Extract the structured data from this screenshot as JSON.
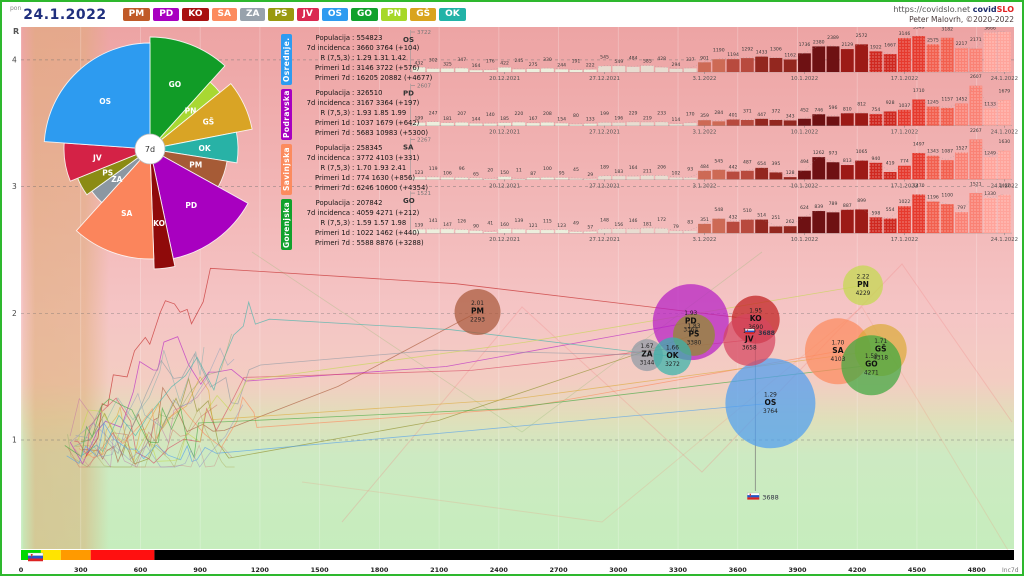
{
  "header": {
    "day": "pon",
    "date": "24.1.2022",
    "url": "https://covidslo.net",
    "brand_covid": "covid",
    "brand_slo": "SLO",
    "credit": "Peter Malovrh, ©2020-2022",
    "regions": [
      {
        "code": "PM",
        "color": "#c05a28"
      },
      {
        "code": "PD",
        "color": "#a800c0"
      },
      {
        "code": "KO",
        "color": "#a81111"
      },
      {
        "code": "SA",
        "color": "#fc8b5e"
      },
      {
        "code": "ZA",
        "color": "#98a2ac"
      },
      {
        "code": "PS",
        "color": "#99990f"
      },
      {
        "code": "JV",
        "color": "#da2950"
      },
      {
        "code": "OS",
        "color": "#2e9bf0"
      },
      {
        "code": "GO",
        "color": "#11a12c"
      },
      {
        "code": "PN",
        "color": "#a6d829"
      },
      {
        "code": "GŠ",
        "color": "#d9a41e"
      },
      {
        "code": "OK",
        "color": "#22b3a7"
      }
    ]
  },
  "axes": {
    "y_label": "R",
    "y_ticks": [
      4,
      3,
      2,
      1
    ],
    "x_min": 0,
    "x_max": 4800,
    "x_step": 300,
    "x_label": "Inc7d"
  },
  "info_boxes": [
    {
      "region": "Osrednje.",
      "color": "#2e9bf0",
      "lines": [
        [
          "Populacija",
          ": 554823"
        ],
        [
          "7d incidenca",
          ": 3660 3764 (+104)"
        ],
        [
          "R (7,5,3)",
          ": 1.29 1.31 1.42"
        ],
        [
          "Primeri 1d",
          ": 3146 3722 (+576)"
        ],
        [
          "Primeri 7d",
          ": 16205 20882 (+4677)"
        ]
      ]
    },
    {
      "region": "Podravska",
      "color": "#a800c0",
      "lines": [
        [
          "Populacija",
          ": 326510"
        ],
        [
          "7d incidenca",
          ": 3167 3364 (+197)"
        ],
        [
          "R (7,5,3)",
          ": 1.93 1.85 1.99"
        ],
        [
          "Primeri 1d",
          ": 1037 1679 (+642)"
        ],
        [
          "Primeri 7d",
          ": 5683 10983 (+5300)"
        ]
      ]
    },
    {
      "region": "Savinjska",
      "color": "#fc8b5e",
      "lines": [
        [
          "Populacija",
          ": 258345"
        ],
        [
          "7d incidenca",
          ": 3772 4103 (+331)"
        ],
        [
          "R (7,5,3)",
          ": 1.70 1.93 2.41"
        ],
        [
          "Primeri 1d",
          ": 774 1630 (+856)"
        ],
        [
          "Primeri 7d",
          ": 6246 10600 (+4354)"
        ]
      ]
    },
    {
      "region": "Gorenjska",
      "color": "#11a12c",
      "lines": [
        [
          "Populacija",
          ": 207842"
        ],
        [
          "7d incidenca",
          ": 4059 4271 (+212)"
        ],
        [
          "R (7,5,3)",
          ": 1.59 1.57 1.98"
        ],
        [
          "Primeri 1d",
          ": 1022 1462 (+440)"
        ],
        [
          "Primeri 7d",
          ": 5588 8876 (+3288)"
        ]
      ]
    }
  ],
  "chart_data": {
    "pie": {
      "type": "pie",
      "center_label": "7d",
      "slices": [
        {
          "code": "GO",
          "a0": 0,
          "a1": 42,
          "r": 112,
          "color": "#119c27"
        },
        {
          "code": "PN",
          "a0": 42,
          "a1": 51,
          "r": 90,
          "color": "#a8d832"
        },
        {
          "code": "GŠ",
          "a0": 51,
          "a1": 79,
          "r": 104,
          "color": "#d9a425"
        },
        {
          "code": "OK",
          "a0": 79,
          "a1": 99,
          "r": 88,
          "color": "#28b2a6"
        },
        {
          "code": "PM",
          "a0": 99,
          "a1": 119,
          "r": 78,
          "color": "#a65b36"
        },
        {
          "code": "PD",
          "a0": 119,
          "a1": 168,
          "r": 112,
          "color": "#a800c0"
        },
        {
          "code": "KO",
          "a0": 168,
          "a1": 178,
          "r": 120,
          "color": "#8f0a0a"
        },
        {
          "code": "SA",
          "a0": 178,
          "a1": 222,
          "r": 110,
          "color": "#fb855c"
        },
        {
          "code": "ZA",
          "a0": 222,
          "a1": 234,
          "r": 72,
          "color": "#8b97a2"
        },
        {
          "code": "PS",
          "a0": 234,
          "a1": 248,
          "r": 78,
          "color": "#8b8b14"
        },
        {
          "code": "JV",
          "a0": 248,
          "a1": 274,
          "r": 86,
          "color": "#d42246"
        },
        {
          "code": "OS",
          "a0": 274,
          "a1": 360,
          "r": 106,
          "color": "#2d9bf0"
        }
      ]
    },
    "daily_cases": {
      "type": "bar",
      "dates": [
        "20.12.2021",
        "27.12.2021",
        "3.1.2022",
        "10.1.2022",
        "17.1.2022",
        "24.1.2022"
      ],
      "date_idx": [
        6,
        13,
        20,
        27,
        34,
        41
      ],
      "strips": [
        {
          "code": "OS",
          "max": 3722,
          "values": [
            432,
            302,
            325,
            347,
            164,
            176,
            422,
            245,
            275,
            330,
            244,
            191,
            222,
            545,
            549,
            484,
            585,
            428,
            294,
            337,
            901,
            1190,
            1194,
            1292,
            1433,
            1306,
            1162,
            1736,
            2380,
            2389,
            2129,
            2572,
            1922,
            1667,
            3146,
            3349,
            2575,
            3182,
            2217,
            2171,
            3666,
            3722
          ]
        },
        {
          "code": "PD",
          "max": 2607,
          "values": [
            199,
            247,
            181,
            207,
            144,
            140,
            185,
            220,
            167,
            208,
            154,
            80,
            133,
            199,
            196,
            229,
            219,
            233,
            114,
            170,
            359,
            284,
            401,
            371,
            447,
            372,
            343,
            452,
            746,
            596,
            810,
            812,
            754,
            928,
            1037,
            1710,
            1245,
            1157,
            1452,
            2607,
            1133,
            1679
          ]
        },
        {
          "code": "SA",
          "max": 2267,
          "values": [
            123,
            119,
            106,
            96,
            65,
            20,
            150,
            11,
            87,
            100,
            95,
            45,
            29,
            189,
            183,
            164,
            211,
            206,
            102,
            93,
            484,
            545,
            442,
            487,
            654,
            395,
            128,
            494,
            1262,
            973,
            813,
            1065,
            940,
            419,
            774,
            1497,
            1343,
            1087,
            1527,
            2267,
            1249,
            1630
          ]
        },
        {
          "code": "GO",
          "max": 1521,
          "values": [
            139,
            141,
            147,
            126,
            90,
            41,
            160,
            139,
            121,
            115,
            123,
            49,
            57,
            148,
            156,
            146,
            181,
            172,
            79,
            83,
            351,
            548,
            432,
            510,
            514,
            251,
            262,
            624,
            839,
            789,
            887,
            899,
            598,
            554,
            1022,
            1470,
            1196,
            1100,
            797,
            1521,
            1330,
            1462
          ]
        }
      ]
    },
    "scatter": {
      "type": "scatter",
      "x": "Inc7d",
      "y": "R",
      "national_inc": 3688,
      "points": [
        {
          "code": "PM",
          "R": 2.01,
          "inc": 2293,
          "r": 23,
          "color": "#a9593a"
        },
        {
          "code": "PD",
          "R": 1.93,
          "inc": 3364,
          "r": 38,
          "color": "#b51fc4"
        },
        {
          "code": "PS",
          "R": 1.83,
          "inc": 3380,
          "r": 21,
          "color": "#8f8f2a"
        },
        {
          "code": "KO",
          "R": 1.95,
          "inc": 3690,
          "r": 24,
          "color": "#c01f1f"
        },
        {
          "code": "JV",
          "R": 1.79,
          "inc": 3658,
          "r": 26,
          "color": "#d64560"
        },
        {
          "code": "ZA",
          "R": 1.67,
          "inc": 3144,
          "r": 16,
          "color": "#8f9aa5"
        },
        {
          "code": "OK",
          "R": 1.66,
          "inc": 3272,
          "r": 19,
          "color": "#37b3ab"
        },
        {
          "code": "PN",
          "R": 2.22,
          "inc": 4229,
          "r": 20,
          "color": "#c3d94e"
        },
        {
          "code": "SA",
          "R": 1.7,
          "inc": 4103,
          "r": 33,
          "color": "#fc8b5e"
        },
        {
          "code": "GŠ",
          "R": 1.71,
          "inc": 4318,
          "r": 26,
          "color": "#ddab3a"
        },
        {
          "code": "GO",
          "R": 1.59,
          "inc": 4271,
          "r": 30,
          "color": "#3fa73f"
        },
        {
          "code": "OS",
          "R": 1.29,
          "inc": 3764,
          "r": 45,
          "color": "#4f9ef0"
        }
      ]
    },
    "legend_bar": {
      "segments": [
        {
          "color": "#00d800",
          "to": 100
        },
        {
          "color": "#ffe400",
          "to": 200
        },
        {
          "color": "#ff9a00",
          "to": 350
        },
        {
          "color": "#ff1010",
          "to": 670
        },
        {
          "color": "#000000",
          "to": 5000
        }
      ]
    }
  }
}
